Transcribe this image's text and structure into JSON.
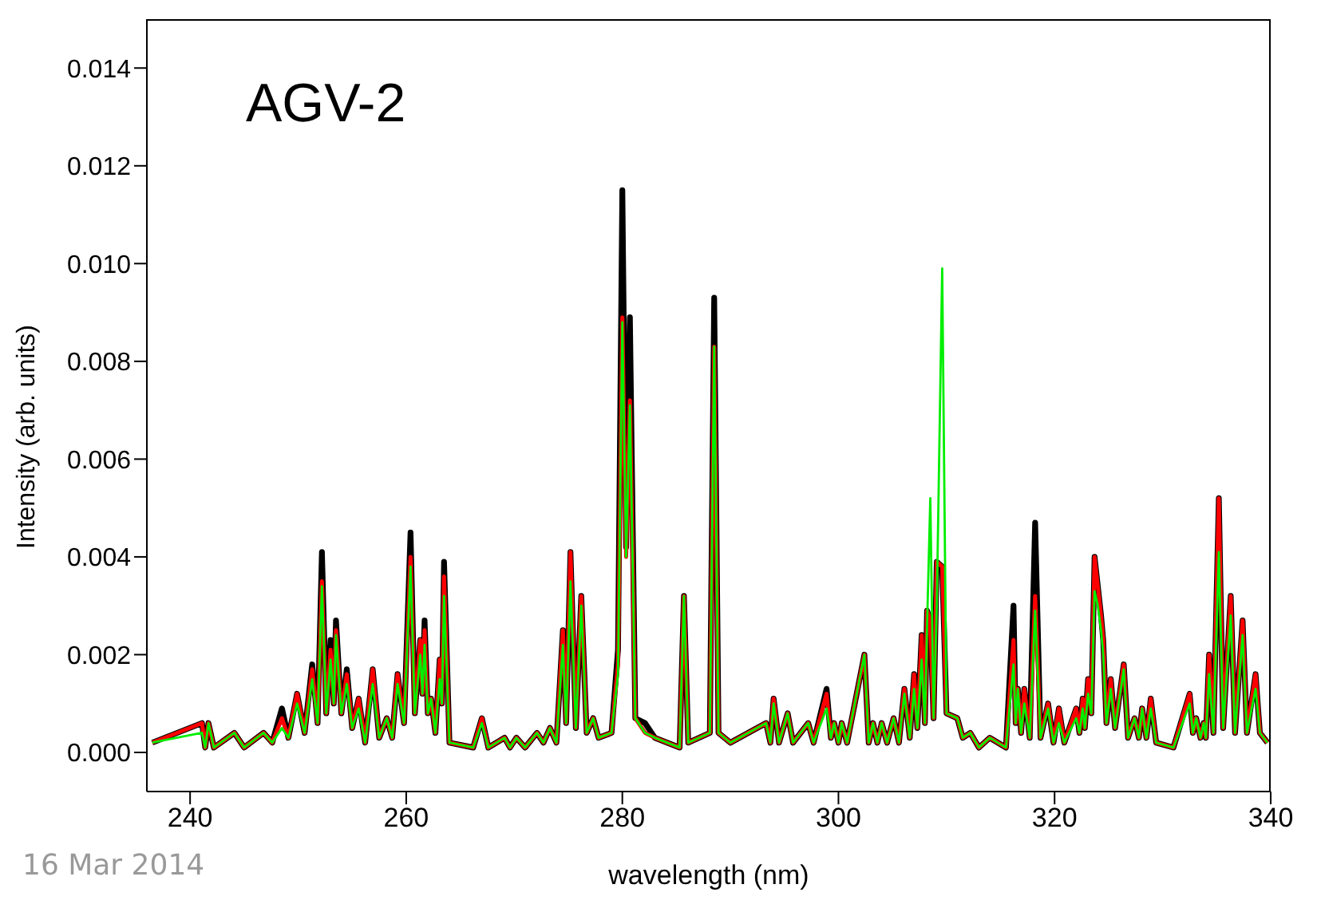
{
  "chart_data": {
    "type": "line",
    "xlabel": "wavelength (nm)",
    "ylabel": "Intensity (arb. units)",
    "annotations": [
      "AGV-2",
      "16 Mar 2014"
    ],
    "xlim": [
      236,
      340
    ],
    "xticks": [
      240,
      260,
      280,
      300,
      320,
      340
    ],
    "ylim": [
      -0.0008,
      0.015
    ],
    "yticks": [
      {
        "value": 0,
        "label": "0.000"
      },
      {
        "value": 0.002,
        "label": "0.002"
      },
      {
        "value": 0.004,
        "label": "0.004"
      },
      {
        "value": 0.006,
        "label": "0.006"
      },
      {
        "value": 0.008,
        "label": "0.008"
      },
      {
        "value": 0.01,
        "label": "0.010"
      },
      {
        "value": 0.012,
        "label": "0.012"
      },
      {
        "value": 0.014,
        "label": "0.014"
      }
    ],
    "grid": false,
    "legend": false,
    "marker": "none",
    "line_style": "solid",
    "x": [
      236.5,
      241.1,
      241.4,
      241.7,
      242.2,
      244.1,
      245.0,
      246.8,
      247.6,
      248.5,
      249.1,
      249.9,
      250.6,
      251.3,
      251.8,
      252.2,
      252.6,
      253.0,
      253.3,
      253.5,
      254.0,
      254.5,
      255.0,
      255.6,
      256.2,
      256.9,
      257.5,
      258.2,
      258.7,
      259.2,
      259.8,
      260.4,
      260.8,
      261.3,
      261.5,
      261.7,
      262.0,
      262.3,
      262.7,
      263.1,
      263.3,
      263.5,
      264.0,
      266.2,
      267.0,
      267.6,
      269.1,
      269.6,
      270.2,
      271.0,
      272.1,
      272.7,
      273.3,
      273.9,
      274.5,
      274.8,
      275.2,
      275.7,
      276.2,
      276.7,
      277.3,
      277.8,
      279.0,
      279.6,
      280.0,
      280.35,
      280.7,
      281.2,
      282.1,
      283.0,
      285.3,
      285.7,
      286.1,
      288.1,
      288.5,
      288.9,
      290.0,
      293.3,
      293.7,
      294.0,
      294.5,
      295.3,
      295.8,
      297.2,
      297.7,
      298.9,
      299.3,
      299.6,
      300.0,
      300.3,
      300.8,
      302.4,
      302.8,
      303.2,
      303.6,
      304.0,
      304.5,
      305.1,
      305.6,
      306.1,
      306.6,
      307.0,
      307.3,
      307.7,
      308.0,
      308.2,
      308.5,
      308.8,
      309.1,
      309.6,
      310.0,
      311.0,
      311.5,
      312.2,
      313.0,
      314.0,
      315.5,
      316.2,
      316.4,
      316.6,
      316.9,
      317.2,
      317.7,
      318.2,
      318.7,
      319.4,
      319.9,
      320.4,
      320.9,
      322.0,
      322.3,
      322.6,
      322.8,
      323.1,
      323.4,
      323.7,
      324.0,
      324.3,
      324.5,
      324.8,
      325.2,
      325.6,
      326.4,
      326.8,
      327.4,
      327.8,
      328.1,
      328.5,
      328.9,
      329.4,
      331.0,
      332.5,
      332.8,
      333.1,
      333.5,
      333.8,
      334.0,
      334.3,
      334.7,
      335.2,
      335.6,
      336.3,
      336.7,
      337.4,
      337.8,
      338.6,
      339.0,
      339.7
    ],
    "series": [
      {
        "color": "#000000",
        "values": [
          0.0002,
          0.0006,
          0.0001,
          0.0006,
          0.0001,
          0.0004,
          0.0001,
          0.0004,
          0.0002,
          0.0009,
          0.0003,
          0.0012,
          0.0004,
          0.0018,
          0.0006,
          0.0041,
          0.0008,
          0.0023,
          0.001,
          0.0027,
          0.0008,
          0.0017,
          0.0005,
          0.0011,
          0.0002,
          0.0017,
          0.0003,
          0.0007,
          0.0003,
          0.0016,
          0.0006,
          0.0045,
          0.0008,
          0.0023,
          0.0012,
          0.0027,
          0.0008,
          0.0011,
          0.0004,
          0.0019,
          0.001,
          0.0039,
          0.0002,
          0.0001,
          0.0007,
          0.0001,
          0.0003,
          0.0001,
          0.0003,
          0.0001,
          0.0004,
          0.0002,
          0.0005,
          0.0002,
          0.0025,
          0.0006,
          0.0041,
          0.0005,
          0.0032,
          0.0004,
          0.0007,
          0.0003,
          0.0004,
          0.0021,
          0.0115,
          0.0042,
          0.0089,
          0.0007,
          0.0006,
          0.0003,
          0.0001,
          0.0032,
          0.0002,
          0.0004,
          0.0093,
          0.0004,
          0.0002,
          0.0006,
          0.0002,
          0.0011,
          0.0002,
          0.0008,
          0.0002,
          0.0006,
          0.0002,
          0.0013,
          0.0003,
          0.0006,
          0.0002,
          0.0006,
          0.0002,
          0.002,
          0.0002,
          0.0006,
          0.0002,
          0.0006,
          0.0002,
          0.0007,
          0.0002,
          0.0013,
          0.0003,
          0.0016,
          0.0005,
          0.0024,
          0.0006,
          0.0029,
          0.0027,
          0.0007,
          0.0039,
          0.0038,
          0.0008,
          0.0007,
          0.0003,
          0.0004,
          0.0001,
          0.0003,
          0.0001,
          0.003,
          0.0006,
          0.0013,
          0.0004,
          0.0013,
          0.0003,
          0.0047,
          0.0003,
          0.001,
          0.0002,
          0.0009,
          0.0002,
          0.0009,
          0.0004,
          0.0011,
          0.0005,
          0.0015,
          0.0008,
          0.004,
          0.0034,
          0.0028,
          0.0023,
          0.0006,
          0.0015,
          0.0005,
          0.0018,
          0.0003,
          0.0007,
          0.0003,
          0.0009,
          0.0003,
          0.0011,
          0.0002,
          0.0001,
          0.0012,
          0.0004,
          0.0007,
          0.0003,
          0.0006,
          0.0003,
          0.002,
          0.0004,
          0.0052,
          0.0005,
          0.0032,
          0.0004,
          0.0027,
          0.0004,
          0.0016,
          0.0004,
          0.0002
        ]
      },
      {
        "color": "#ff0000",
        "values": [
          0.0002,
          0.0006,
          0.0001,
          0.0006,
          0.0001,
          0.0004,
          0.0001,
          0.0004,
          0.0002,
          0.0007,
          0.0003,
          0.0012,
          0.0004,
          0.0017,
          0.0006,
          0.0035,
          0.0008,
          0.0021,
          0.001,
          0.0025,
          0.0008,
          0.0016,
          0.0005,
          0.0011,
          0.0002,
          0.0017,
          0.0003,
          0.0007,
          0.0003,
          0.0016,
          0.0006,
          0.004,
          0.0008,
          0.0023,
          0.0012,
          0.0025,
          0.0008,
          0.0011,
          0.0004,
          0.0019,
          0.001,
          0.0036,
          0.0002,
          0.0001,
          0.0007,
          0.0001,
          0.0003,
          0.0001,
          0.0003,
          0.0001,
          0.0004,
          0.0002,
          0.0005,
          0.0002,
          0.0025,
          0.0006,
          0.0041,
          0.0005,
          0.0032,
          0.0004,
          0.0007,
          0.0003,
          0.0004,
          0.0018,
          0.0089,
          0.004,
          0.0072,
          0.0007,
          0.0004,
          0.0003,
          0.0001,
          0.0032,
          0.0002,
          0.0004,
          0.0083,
          0.0004,
          0.0002,
          0.0006,
          0.0002,
          0.0011,
          0.0002,
          0.0008,
          0.0002,
          0.0006,
          0.0002,
          0.0012,
          0.0003,
          0.0006,
          0.0002,
          0.0006,
          0.0002,
          0.002,
          0.0002,
          0.0006,
          0.0002,
          0.0006,
          0.0002,
          0.0007,
          0.0002,
          0.0013,
          0.0003,
          0.0016,
          0.0005,
          0.0024,
          0.0006,
          0.0029,
          0.0027,
          0.0007,
          0.0039,
          0.0038,
          0.0008,
          0.0007,
          0.0003,
          0.0004,
          0.0001,
          0.0003,
          0.0001,
          0.0023,
          0.0006,
          0.0013,
          0.0004,
          0.0013,
          0.0003,
          0.0032,
          0.0003,
          0.001,
          0.0002,
          0.0009,
          0.0002,
          0.0009,
          0.0004,
          0.0011,
          0.0005,
          0.0015,
          0.0008,
          0.004,
          0.0034,
          0.0028,
          0.0023,
          0.0006,
          0.0015,
          0.0005,
          0.0018,
          0.0003,
          0.0007,
          0.0003,
          0.0009,
          0.0003,
          0.0011,
          0.0002,
          0.0001,
          0.0012,
          0.0004,
          0.0007,
          0.0003,
          0.0006,
          0.0003,
          0.002,
          0.0004,
          0.0052,
          0.0005,
          0.0032,
          0.0004,
          0.0027,
          0.0004,
          0.0016,
          0.0004,
          0.0002
        ]
      },
      {
        "color": "#00ee00",
        "values": [
          0.0002,
          0.0004,
          0.0001,
          0.0006,
          0.0001,
          0.0004,
          0.0001,
          0.0004,
          0.0002,
          0.0005,
          0.0003,
          0.001,
          0.0004,
          0.0015,
          0.0006,
          0.0034,
          0.0008,
          0.0019,
          0.001,
          0.0024,
          0.0008,
          0.0014,
          0.0005,
          0.0009,
          0.0002,
          0.0014,
          0.0003,
          0.0007,
          0.0003,
          0.0014,
          0.0006,
          0.0038,
          0.0008,
          0.002,
          0.0012,
          0.0022,
          0.0008,
          0.0011,
          0.0004,
          0.0015,
          0.001,
          0.0032,
          0.0002,
          0.0001,
          0.0006,
          0.0001,
          0.0003,
          0.0001,
          0.0003,
          0.0001,
          0.0004,
          0.0002,
          0.0005,
          0.0002,
          0.0022,
          0.0006,
          0.0035,
          0.0005,
          0.003,
          0.0004,
          0.0007,
          0.0003,
          0.0004,
          0.0016,
          0.0088,
          0.004,
          0.0071,
          0.0007,
          0.0004,
          0.0003,
          0.0001,
          0.0032,
          0.0002,
          0.0004,
          0.0083,
          0.0004,
          0.0002,
          0.0006,
          0.0002,
          0.001,
          0.0002,
          0.0008,
          0.0002,
          0.0006,
          0.0002,
          0.0009,
          0.0003,
          0.0006,
          0.0002,
          0.0006,
          0.0002,
          0.002,
          0.0002,
          0.0006,
          0.0002,
          0.0006,
          0.0002,
          0.0007,
          0.0002,
          0.0012,
          0.0003,
          0.0013,
          0.0005,
          0.0019,
          0.0006,
          0.0026,
          0.0052,
          0.0007,
          0.003,
          0.0099,
          0.0008,
          0.0007,
          0.0003,
          0.0004,
          0.0001,
          0.0003,
          0.0001,
          0.0018,
          0.0006,
          0.0013,
          0.0004,
          0.001,
          0.0003,
          0.0029,
          0.0003,
          0.0009,
          0.0002,
          0.0006,
          0.0002,
          0.0007,
          0.0004,
          0.0009,
          0.0005,
          0.0012,
          0.0008,
          0.0033,
          0.003,
          0.0025,
          0.002,
          0.0006,
          0.0013,
          0.0005,
          0.0017,
          0.0003,
          0.0007,
          0.0003,
          0.0009,
          0.0003,
          0.0009,
          0.0002,
          0.0001,
          0.001,
          0.0004,
          0.0007,
          0.0003,
          0.0006,
          0.0003,
          0.0016,
          0.0004,
          0.0041,
          0.0005,
          0.0028,
          0.0004,
          0.0024,
          0.0004,
          0.0013,
          0.0004,
          0.0002
        ]
      }
    ]
  }
}
